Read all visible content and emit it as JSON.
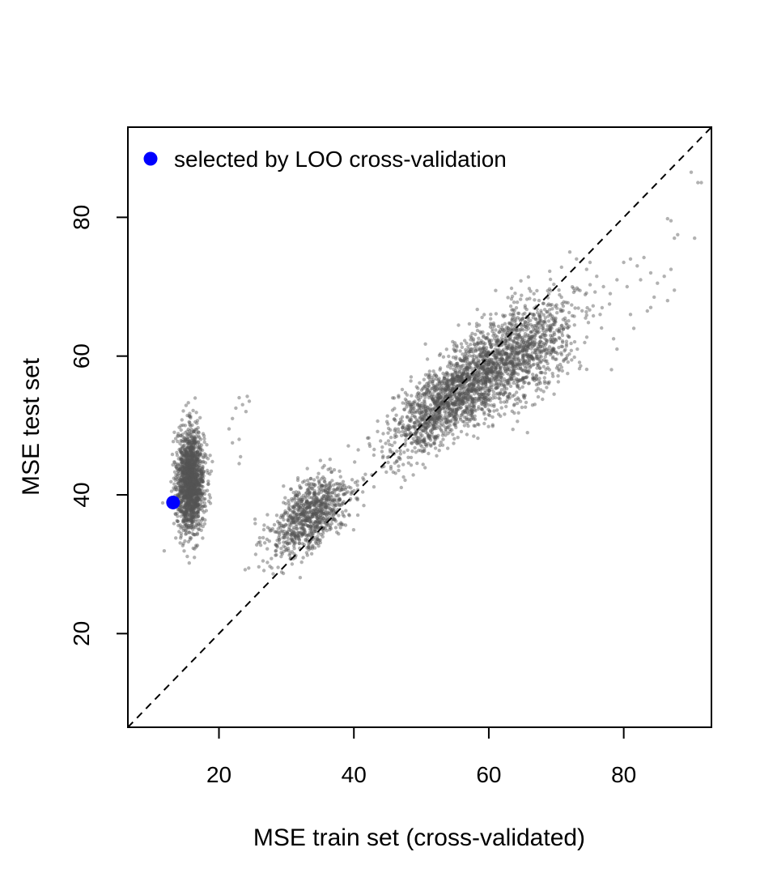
{
  "chart_data": {
    "type": "scatter",
    "title": "",
    "xlabel": "MSE train set (cross-validated)",
    "ylabel": "MSE test set",
    "xlim": [
      6.5,
      93
    ],
    "ylim": [
      6.5,
      93
    ],
    "xticks": [
      20,
      40,
      60,
      80
    ],
    "yticks": [
      20,
      40,
      60,
      80
    ],
    "reference_line": {
      "slope": 1,
      "intercept": 0,
      "style": "dashed",
      "color": "#000000"
    },
    "point_color": "#555555",
    "point_opacity": 0.45,
    "highlight_color": "#0000ff",
    "legend": {
      "position": "top-left",
      "label": "selected by LOO cross-validation"
    },
    "highlight": {
      "x": 13.2,
      "y": 38.9
    },
    "clusters": [
      {
        "name": "",
        "cx": 15.8,
        "cy": 42.0,
        "sx": 1.0,
        "sy": 3.6,
        "n": 1600
      },
      {
        "name": "",
        "cx": 33.5,
        "cy": 37.0,
        "sx": 3.0,
        "sy": 3.0,
        "rho": 0.55,
        "n": 900
      },
      {
        "name": "",
        "cx": 54.0,
        "cy": 54.0,
        "sx": 4.2,
        "sy": 4.0,
        "rho": 0.72,
        "n": 1400
      },
      {
        "name": "",
        "cx": 64.0,
        "cy": 60.0,
        "sx": 4.5,
        "sy": 4.2,
        "rho": 0.55,
        "n": 1300
      }
    ],
    "outliers": [
      [
        22.0,
        51.0
      ],
      [
        22.5,
        52.5
      ],
      [
        23.0,
        54.0
      ],
      [
        23.5,
        53.0
      ],
      [
        24.0,
        52.0
      ],
      [
        24.5,
        53.5
      ],
      [
        23.0,
        48.0
      ],
      [
        22.0,
        47.5
      ],
      [
        23.0,
        44.5
      ],
      [
        23.2,
        45.5
      ],
      [
        21.5,
        49.5
      ],
      [
        24.2,
        54.2
      ],
      [
        72.0,
        75.0
      ],
      [
        73.0,
        74.0
      ],
      [
        74.5,
        72.5
      ],
      [
        75.0,
        73.5
      ],
      [
        76.0,
        71.5
      ],
      [
        77.0,
        70.0
      ],
      [
        78.0,
        69.0
      ],
      [
        79.0,
        71.0
      ],
      [
        80.0,
        73.5
      ],
      [
        81.0,
        74.0
      ],
      [
        82.0,
        73.0
      ],
      [
        82.5,
        71.0
      ],
      [
        83.0,
        74.2
      ],
      [
        84.0,
        72.0
      ],
      [
        85.0,
        70.5
      ],
      [
        86.0,
        71.5
      ],
      [
        86.5,
        68.0
      ],
      [
        87.5,
        69.5
      ],
      [
        87.0,
        72.5
      ],
      [
        86.5,
        79.8
      ],
      [
        87.0,
        79.5
      ],
      [
        88.0,
        77.5
      ],
      [
        87.5,
        77.0
      ],
      [
        90.5,
        77.0
      ],
      [
        90.0,
        86.5
      ],
      [
        91.0,
        85.0
      ],
      [
        91.5,
        85.0
      ],
      [
        81.0,
        66.0
      ],
      [
        81.5,
        64.0
      ],
      [
        79.0,
        61.0
      ],
      [
        84.5,
        68.5
      ],
      [
        83.5,
        66.5
      ],
      [
        80.5,
        70.0
      ],
      [
        76.5,
        66.0
      ],
      [
        78.5,
        62.5
      ],
      [
        84.0,
        67.0
      ]
    ]
  }
}
